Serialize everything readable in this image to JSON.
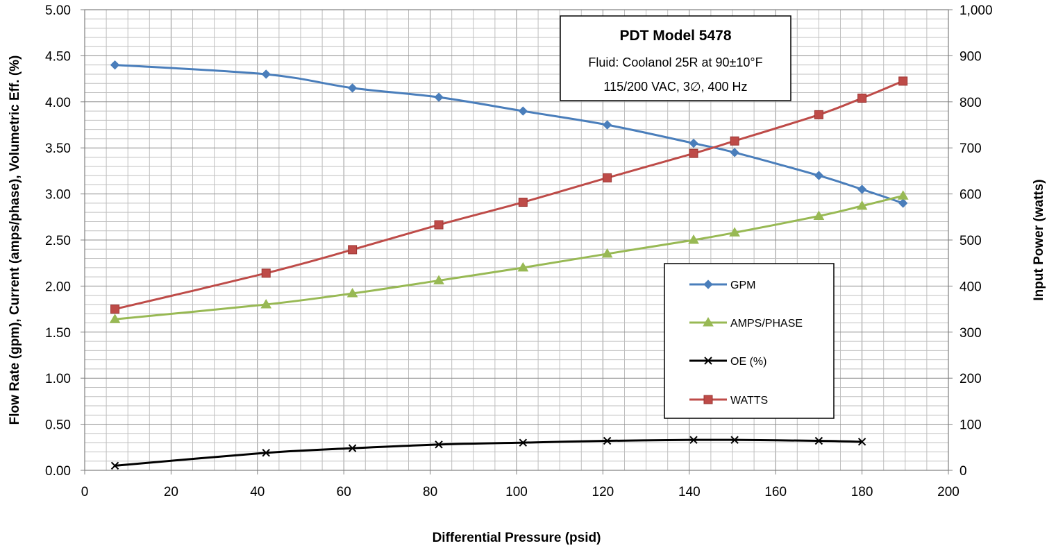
{
  "chart_data": {
    "type": "line",
    "title": "PDT Model 5478",
    "annotation_lines": [
      "Fluid: Coolanol 25R at 90±10°F",
      "115/200 VAC, 3∅,  400 Hz"
    ],
    "xlabel": "Differential Pressure (psid)",
    "ylabel_left": "Flow Rate (gpm), Current (amps/phase),  Volumetric Eff. (%)",
    "ylabel_right": "Input Power (watts)",
    "xlim": [
      0,
      200
    ],
    "ylim_left": [
      0,
      5
    ],
    "ylim_right": [
      0,
      1000
    ],
    "x_ticks": [
      "0",
      "20",
      "40",
      "60",
      "80",
      "100",
      "120",
      "140",
      "160",
      "180",
      "200"
    ],
    "y_left_ticks": [
      "0.00",
      "0.50",
      "1.00",
      "1.50",
      "2.00",
      "2.50",
      "3.00",
      "3.50",
      "4.00",
      "4.50",
      "5.00"
    ],
    "y_right_ticks": [
      "0",
      "100",
      "200",
      "300",
      "400",
      "500",
      "600",
      "700",
      "800",
      "900",
      "1,000"
    ],
    "grid": true,
    "legend_position": "right, lower middle",
    "series": [
      {
        "name": "GPM",
        "axis": "left",
        "color": "#4a7ebb",
        "marker": "diamond",
        "x": [
          7,
          42,
          62,
          82,
          101.5,
          121,
          141,
          150.5,
          170,
          180,
          189.5
        ],
        "y": [
          4.4,
          4.3,
          4.15,
          4.05,
          3.9,
          3.75,
          3.55,
          3.45,
          3.2,
          3.05,
          2.9
        ]
      },
      {
        "name": "AMPS/PHASE",
        "axis": "left",
        "color": "#98b954",
        "marker": "triangle",
        "x": [
          7,
          42,
          62,
          82,
          101.5,
          121,
          141,
          150.5,
          170,
          180,
          189.5
        ],
        "y": [
          1.64,
          1.8,
          1.92,
          2.06,
          2.2,
          2.35,
          2.5,
          2.58,
          2.76,
          2.87,
          2.98
        ]
      },
      {
        "name": "OE (%)",
        "axis": "left",
        "color": "#000000",
        "marker": "x",
        "x": [
          7,
          42,
          62,
          82,
          101.5,
          121,
          141,
          150.5,
          170,
          180
        ],
        "y": [
          0.05,
          0.19,
          0.24,
          0.28,
          0.3,
          0.32,
          0.33,
          0.33,
          0.32,
          0.31
        ]
      },
      {
        "name": "WATTS",
        "axis": "right",
        "color": "#be4b48",
        "marker": "square",
        "x": [
          7,
          42,
          62,
          82,
          101.5,
          121,
          141,
          150.5,
          170,
          180,
          189.5
        ],
        "y": [
          350,
          428,
          479,
          533,
          582,
          635,
          688,
          715,
          772,
          808,
          845
        ]
      }
    ]
  }
}
